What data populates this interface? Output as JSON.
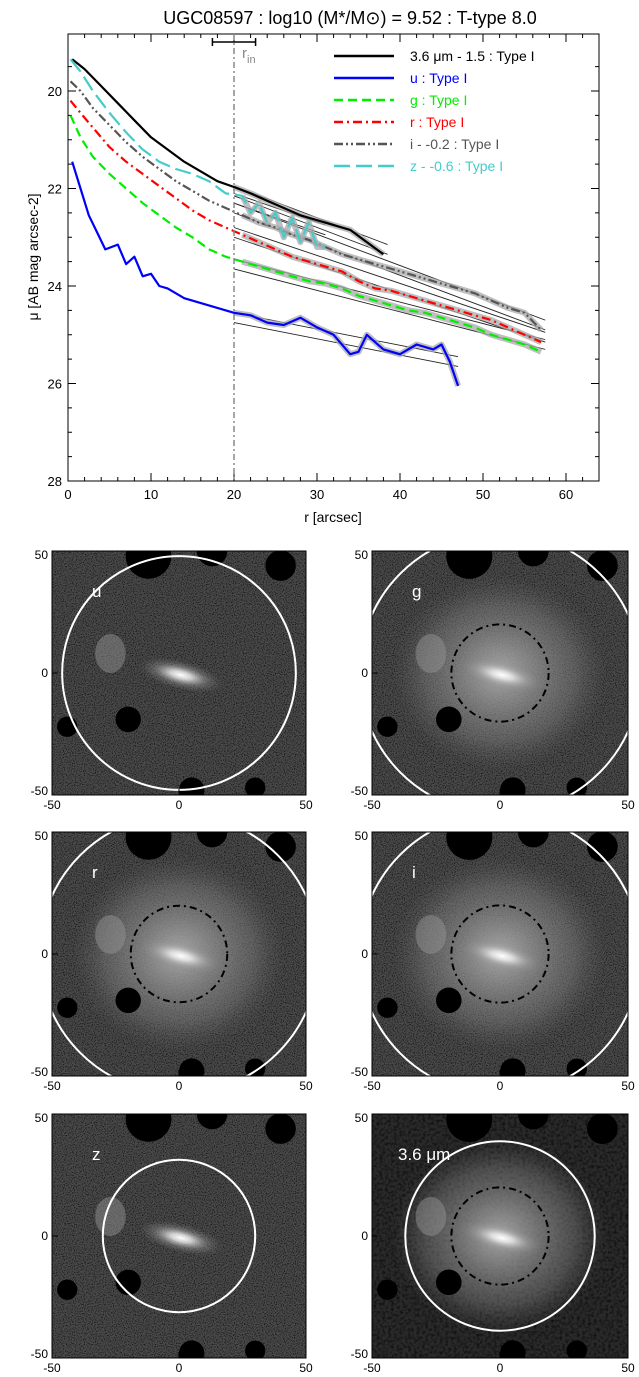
{
  "chart_data": [
    {
      "type": "line",
      "title": "UGC08597 : log10 (M*/M⊙) = 9.52 : T-type 8.0",
      "xlabel": "r [arcsec]",
      "ylabel": "μ [AB mag arcsec-2]",
      "xlim": [
        0,
        64
      ],
      "ylim": [
        28,
        19
      ],
      "y_inverted": true,
      "xticks": [
        "0",
        "10",
        "20",
        "30",
        "40",
        "50",
        "60"
      ],
      "yticks": [
        "20",
        "22",
        "24",
        "26",
        "28"
      ],
      "r_in": 20,
      "r_in_label": "r",
      "r_in_label_sub": "in",
      "r_in_errorbar": [
        17.4,
        22.6
      ],
      "legend_position": "top-right",
      "series": [
        {
          "name": "3.6 μm - 1.5 : Type I",
          "color": "#000000",
          "dash": "solid",
          "x": [
            0.5,
            2,
            4,
            6,
            8,
            10,
            12,
            14,
            16,
            18,
            20,
            22,
            24,
            26,
            28,
            30,
            32,
            34,
            36,
            38
          ],
          "y": [
            19.35,
            19.55,
            19.9,
            20.25,
            20.6,
            20.95,
            21.2,
            21.45,
            21.65,
            21.85,
            21.97,
            22.1,
            22.25,
            22.4,
            22.55,
            22.65,
            22.75,
            22.85,
            23.1,
            23.35
          ],
          "fit": {
            "x": [
              20,
              38.5
            ],
            "y": [
              22.05,
              23.25
            ]
          }
        },
        {
          "name": "u : Type I",
          "color": "#0000ff",
          "dash": "solid",
          "x": [
            0.5,
            1.5,
            2.5,
            3.5,
            4.5,
            6,
            7,
            8,
            9,
            10,
            11,
            12,
            14,
            16,
            18,
            20,
            22,
            24,
            26,
            28,
            30,
            32,
            34,
            35,
            36,
            38,
            40,
            42,
            44,
            45,
            46,
            47
          ],
          "y": [
            21.45,
            22.0,
            22.55,
            22.9,
            23.25,
            23.15,
            23.55,
            23.4,
            23.8,
            23.75,
            24.0,
            24.05,
            24.25,
            24.35,
            24.45,
            24.55,
            24.6,
            24.75,
            24.8,
            24.65,
            24.85,
            25.0,
            25.4,
            25.35,
            25.0,
            25.3,
            25.4,
            25.2,
            25.3,
            25.2,
            25.55,
            26.05
          ],
          "fit": {
            "x": [
              20,
              47
            ],
            "y": [
              24.65,
              25.55
            ]
          }
        },
        {
          "name": "g : Type I",
          "color": "#00ee00",
          "dash": "dash",
          "x": [
            0.3,
            1.5,
            3,
            5,
            7,
            9,
            11,
            13,
            15,
            17,
            19,
            21,
            23,
            25,
            27,
            29,
            31,
            33,
            35,
            37,
            39,
            41,
            43,
            45,
            47,
            49,
            51,
            53,
            55,
            57
          ],
          "y": [
            20.5,
            20.95,
            21.35,
            21.7,
            22.0,
            22.3,
            22.55,
            22.8,
            23.0,
            23.25,
            23.4,
            23.5,
            23.6,
            23.7,
            23.8,
            23.9,
            23.95,
            24.05,
            24.2,
            24.3,
            24.4,
            24.5,
            24.55,
            24.65,
            24.75,
            24.85,
            25.0,
            25.1,
            25.2,
            25.35
          ],
          "fit": {
            "x": [
              20,
              57.5
            ],
            "y": [
              23.55,
              25.2
            ]
          }
        },
        {
          "name": "r : Type I",
          "color": "#ff0000",
          "dash": "dashdot",
          "x": [
            0.3,
            1.5,
            3,
            5,
            7,
            9,
            11,
            13,
            15,
            17,
            19,
            21,
            23,
            25,
            27,
            29,
            31,
            33,
            35,
            37,
            39,
            41,
            43,
            45,
            47,
            49,
            51,
            53,
            55,
            57
          ],
          "y": [
            20.2,
            20.45,
            20.75,
            21.15,
            21.45,
            21.7,
            21.95,
            22.2,
            22.45,
            22.65,
            22.8,
            22.95,
            23.1,
            23.25,
            23.4,
            23.5,
            23.6,
            23.7,
            23.9,
            24.05,
            24.1,
            24.2,
            24.3,
            24.4,
            24.5,
            24.6,
            24.7,
            24.85,
            25.0,
            25.15
          ],
          "fit": {
            "x": [
              20,
              57.5
            ],
            "y": [
              22.9,
              25.05
            ]
          }
        },
        {
          "name": "i - -0.2 : Type I",
          "color": "#555555",
          "dash": "dashdotdot",
          "x": [
            0.3,
            1.5,
            3,
            5,
            7,
            9,
            11,
            13,
            15,
            17,
            19,
            21,
            23,
            25,
            27,
            29,
            31,
            33,
            35,
            37,
            39,
            41,
            43,
            45,
            47,
            49,
            51,
            53,
            55,
            57
          ],
          "y": [
            19.8,
            20.0,
            20.35,
            20.7,
            21.05,
            21.35,
            21.6,
            21.85,
            22.05,
            22.25,
            22.4,
            22.55,
            22.7,
            22.8,
            22.95,
            23.05,
            23.2,
            23.35,
            23.45,
            23.55,
            23.65,
            23.75,
            23.85,
            23.95,
            24.05,
            24.15,
            24.3,
            24.45,
            24.55,
            24.9
          ],
          "fit": {
            "x": [
              20,
              57.5
            ],
            "y": [
              22.4,
              24.8
            ]
          }
        },
        {
          "name": "z - -0.6 : Type I",
          "color": "#44cccc",
          "dash": "longdash",
          "x": [
            0.3,
            1.5,
            3,
            5,
            7,
            9,
            11,
            13,
            15,
            17,
            19,
            21,
            22,
            23,
            24,
            25,
            26,
            27,
            28,
            29,
            30,
            31
          ],
          "y": [
            19.35,
            19.6,
            20.0,
            20.45,
            20.85,
            21.2,
            21.45,
            21.6,
            21.7,
            21.85,
            22.1,
            22.15,
            22.5,
            22.3,
            22.7,
            22.5,
            23.0,
            22.6,
            23.1,
            22.7,
            23.2,
            23.2
          ],
          "fit": {
            "x": [
              20,
              31
            ],
            "y": [
              22.2,
              22.85
            ]
          }
        }
      ]
    },
    {
      "type": "heatmap",
      "panels": [
        {
          "label": "u",
          "circles": [
            "solid-white-large"
          ],
          "xticks": [
            "-50",
            "0",
            "50"
          ],
          "yticks": [
            "50",
            "0",
            "-50"
          ]
        },
        {
          "label": "g",
          "circles": [
            "solid-white-large",
            "dashed-black-small"
          ],
          "xticks": [
            "-50",
            "0",
            "50"
          ],
          "yticks": [
            "50",
            "0",
            "-50"
          ]
        },
        {
          "label": "r",
          "circles": [
            "solid-white-large",
            "dashed-black-small"
          ],
          "xticks": [
            "-50",
            "0",
            "50"
          ],
          "yticks": [
            "50",
            "0",
            "-50"
          ]
        },
        {
          "label": "i",
          "circles": [
            "solid-white-large",
            "dashed-black-small"
          ],
          "xticks": [
            "-50",
            "0",
            "50"
          ],
          "yticks": [
            "50",
            "0",
            "-50"
          ]
        },
        {
          "label": "z",
          "circles": [
            "solid-white-medium"
          ],
          "xticks": [
            "-50",
            "0",
            "50"
          ],
          "yticks": [
            "50",
            "0",
            "-50"
          ]
        },
        {
          "label": "3.6 μm",
          "circles": [
            "solid-white-medium",
            "dashed-black-small"
          ],
          "xticks": [
            "-50",
            "0",
            "50"
          ],
          "yticks": [
            "50",
            "0",
            "-50"
          ]
        }
      ]
    }
  ]
}
